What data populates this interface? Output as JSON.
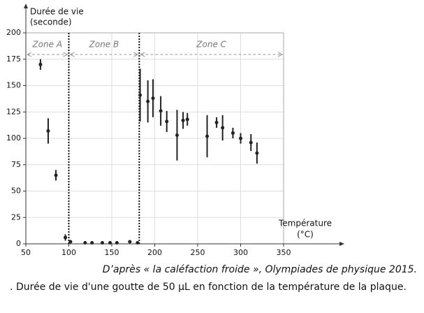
{
  "chart_data": {
    "type": "scatter",
    "y_label": [
      "Durée de vie",
      "(seconde)"
    ],
    "x_label": [
      "Température",
      "(°C)"
    ],
    "xlim": [
      50,
      350
    ],
    "xticks": [
      50,
      100,
      150,
      200,
      250,
      300,
      350
    ],
    "ylim": [
      0,
      200
    ],
    "yticks": [
      0,
      25,
      50,
      75,
      100,
      125,
      150,
      175,
      200
    ],
    "grid": true,
    "vlines": [
      100,
      182
    ],
    "zones": [
      {
        "label": "Zone A",
        "range": [
          50,
          100
        ]
      },
      {
        "label": "Zone B",
        "range": [
          100,
          182
        ]
      },
      {
        "label": "Zone C",
        "range": [
          182,
          350
        ]
      }
    ],
    "series": [
      {
        "color": "#222222",
        "x": [
          67,
          76,
          85,
          96,
          102,
          119,
          127,
          139,
          148,
          156,
          171,
          180,
          183,
          192,
          198,
          207,
          214,
          226,
          233,
          238,
          261,
          272,
          279,
          291,
          300,
          312,
          319
        ],
        "values": [
          170,
          107,
          65,
          6,
          2,
          1,
          1,
          1,
          1,
          1,
          2,
          1,
          141,
          135,
          138,
          126,
          116,
          103,
          117,
          118,
          102,
          115,
          110,
          105,
          100,
          96,
          86
        ],
        "errors": [
          5,
          12,
          5,
          3,
          null,
          null,
          null,
          null,
          null,
          null,
          null,
          null,
          25,
          20,
          18,
          14,
          10,
          24,
          8,
          6,
          20,
          5,
          12,
          5,
          5,
          8,
          10
        ]
      }
    ],
    "source": "D’après « la caléfaction froide », Olympiades de physique 2015.",
    "caption": ". Durée de vie d'une goutte de 50 µL en fonction de la température de la plaque."
  }
}
